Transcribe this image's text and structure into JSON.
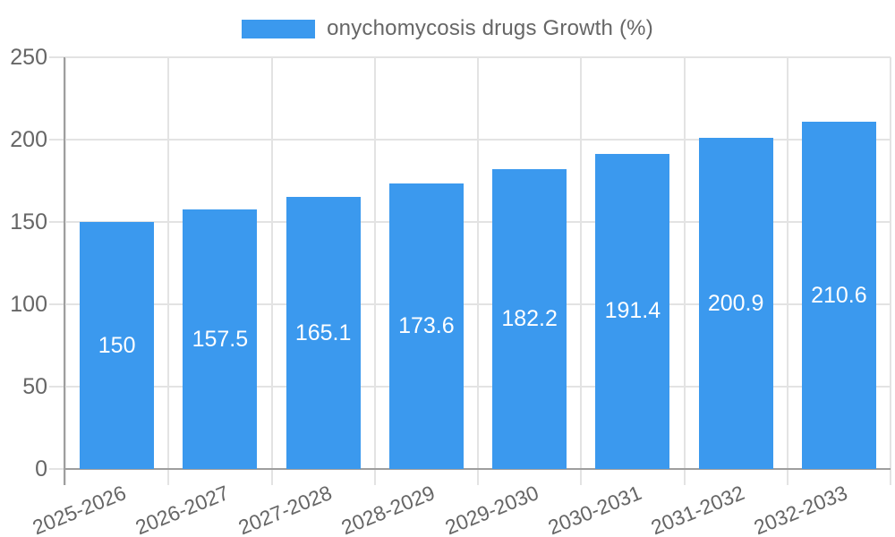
{
  "legend": {
    "label": "onychomycosis drugs Growth (%)"
  },
  "colors": {
    "bar": "#3B99EE",
    "grid": "#E3E3E3",
    "axis": "#9E9E9E",
    "tick_text": "#666666",
    "bar_label_text": "#FFFFFF",
    "background": "#FFFFFF"
  },
  "chart_data": {
    "type": "bar",
    "title": "onychomycosis drugs Growth (%)",
    "categories": [
      "2025-2026",
      "2026-2027",
      "2027-2028",
      "2028-2029",
      "2029-2030",
      "2030-2031",
      "2031-2032",
      "2032-2033"
    ],
    "series": [
      {
        "name": "onychomycosis drugs Growth (%)",
        "values": [
          150,
          157.5,
          165.1,
          173.6,
          182.2,
          191.4,
          200.9,
          210.6
        ]
      }
    ],
    "xlabel": "",
    "ylabel": "",
    "ylim": [
      0,
      250
    ],
    "y_ticks": [
      0,
      50,
      100,
      150,
      200,
      250
    ],
    "grid": true,
    "legend_position": "top",
    "value_labels": "inside-center"
  }
}
